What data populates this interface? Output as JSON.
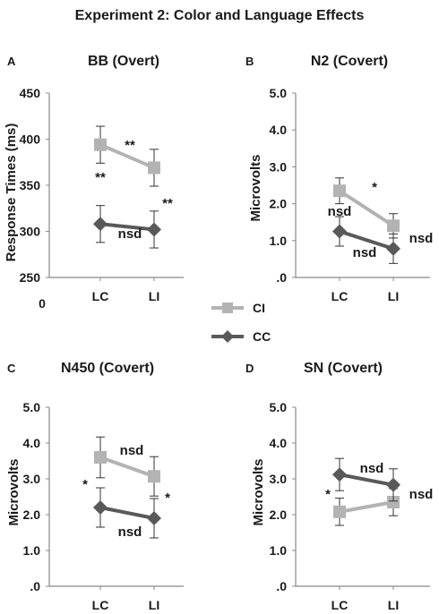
{
  "figure_title": "Experiment 2: Color and Language Effects",
  "legend": [
    {
      "label": "CI",
      "color": "#b3b3b3",
      "marker": "square"
    },
    {
      "label": "CC",
      "color": "#595959",
      "marker": "diamond"
    }
  ],
  "chart_data": [
    {
      "panel": "A",
      "type": "line",
      "title": "BB (Overt)",
      "ylabel": "Response Times (ms)",
      "categories": [
        "LC",
        "LI"
      ],
      "ylim": [
        250,
        450
      ],
      "yticks": [
        "450",
        "400",
        "350",
        "300",
        "250"
      ],
      "axis_extra_label": "0",
      "series": [
        {
          "name": "CI",
          "values": [
            394,
            369
          ],
          "err": [
            20,
            20
          ]
        },
        {
          "name": "CC",
          "values": [
            308,
            302
          ],
          "err": [
            20,
            20
          ]
        }
      ],
      "annotations": [
        "**",
        "**",
        "**",
        "nsd"
      ]
    },
    {
      "panel": "B",
      "type": "line",
      "title": "N2 (Covert)",
      "ylabel": "Microvolts",
      "categories": [
        "LC",
        "LI"
      ],
      "ylim": [
        0,
        5
      ],
      "yticks": [
        "5.0",
        "4.0",
        "3.0",
        "2.0",
        "1.0",
        ".0"
      ],
      "series": [
        {
          "name": "CI",
          "values": [
            2.35,
            1.4
          ],
          "err": [
            0.35,
            0.33
          ]
        },
        {
          "name": "CC",
          "values": [
            1.25,
            0.78
          ],
          "err": [
            0.4,
            0.4
          ]
        }
      ],
      "annotations": [
        "*",
        "nsd",
        "nsd",
        "nsd"
      ]
    },
    {
      "panel": "C",
      "type": "line",
      "title": "N450 (Covert)",
      "ylabel": "Microvolts",
      "categories": [
        "LC",
        "LI"
      ],
      "ylim": [
        0,
        5
      ],
      "yticks": [
        "5.0",
        "4.0",
        "3.0",
        "2.0",
        "1.0",
        ".0"
      ],
      "series": [
        {
          "name": "CI",
          "values": [
            3.6,
            3.07
          ],
          "err": [
            0.57,
            0.55
          ]
        },
        {
          "name": "CC",
          "values": [
            2.2,
            1.9
          ],
          "err": [
            0.55,
            0.55
          ]
        }
      ],
      "annotations": [
        "nsd",
        "*",
        "*",
        "nsd"
      ]
    },
    {
      "panel": "D",
      "type": "line",
      "title": "SN (Covert)",
      "ylabel": "Microvolts",
      "categories": [
        "LC",
        "LI"
      ],
      "ylim": [
        0,
        5
      ],
      "yticks": [
        "5.0",
        "4.0",
        "3.0",
        "2.0",
        "1.0",
        ".0"
      ],
      "series": [
        {
          "name": "CI",
          "values": [
            2.08,
            2.35
          ],
          "err": [
            0.38,
            0.38
          ]
        },
        {
          "name": "CC",
          "values": [
            3.12,
            2.83
          ],
          "err": [
            0.45,
            0.45
          ]
        }
      ],
      "annotations": [
        "nsd",
        "*",
        "nsd"
      ]
    }
  ]
}
